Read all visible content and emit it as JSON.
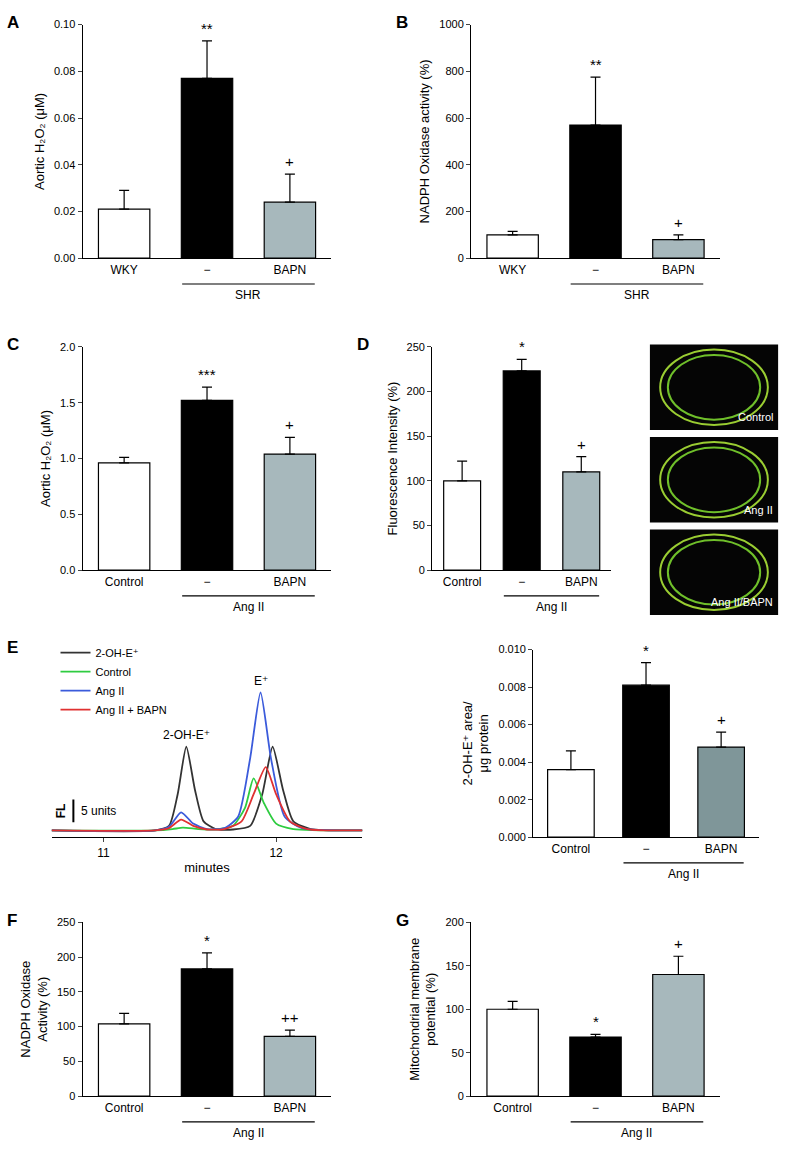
{
  "chart_data": [
    {
      "type": "bar",
      "panel": "A",
      "ylabel": "Aortic H₂O₂ (μM)",
      "categories": [
        "WKY",
        "−",
        "BAPN"
      ],
      "group_label": "SHR",
      "values": [
        0.021,
        0.077,
        0.024
      ],
      "errors": [
        0.008,
        0.016,
        0.012
      ],
      "colors": [
        "#ffffff",
        "#000000",
        "#a7b8bc"
      ],
      "marks": [
        null,
        "**",
        "+"
      ],
      "ylim": [
        0,
        0.1
      ],
      "yticks": [
        {
          "value": 0,
          "label": "0.00"
        },
        0.02,
        0.04,
        0.06,
        0.08,
        {
          "value": 0.1,
          "label": "0.10"
        }
      ],
      "grid": false
    },
    {
      "type": "bar",
      "panel": "B",
      "ylabel": "NADPH Oxidase activity (%)",
      "categories": [
        "WKY",
        "−",
        "BAPN"
      ],
      "group_label": "SHR",
      "values": [
        100,
        570,
        80
      ],
      "errors": [
        15,
        205,
        20
      ],
      "colors": [
        "#ffffff",
        "#000000",
        "#a7b8bc"
      ],
      "marks": [
        null,
        "**",
        "+"
      ],
      "ylim": [
        0,
        1000
      ],
      "yticks": [
        0,
        200,
        400,
        600,
        800,
        1000
      ],
      "grid": false
    },
    {
      "type": "bar",
      "panel": "C",
      "ylabel": "Aortic H₂O₂ (μM)",
      "categories": [
        "Control",
        "−",
        "BAPN"
      ],
      "group_label": "Ang II",
      "values": [
        0.96,
        1.52,
        1.04
      ],
      "errors": [
        0.05,
        0.12,
        0.15
      ],
      "colors": [
        "#ffffff",
        "#000000",
        "#a7b8bc"
      ],
      "marks": [
        null,
        "***",
        "+"
      ],
      "ylim": [
        0,
        2
      ],
      "yticks": [
        {
          "value": 0,
          "label": "0.0"
        },
        0.5,
        {
          "value": 1,
          "label": "1.0"
        },
        1.5,
        {
          "value": 2,
          "label": "2.0"
        }
      ],
      "grid": false
    },
    {
      "type": "bar",
      "panel": "D",
      "ylabel": "Fluorescence Intensity (%)",
      "categories": [
        "Control",
        "−",
        "BAPN"
      ],
      "group_label": "Ang II",
      "values": [
        100,
        223,
        110
      ],
      "errors": [
        22,
        13,
        17
      ],
      "colors": [
        "#ffffff",
        "#000000",
        "#a7b8bc"
      ],
      "marks": [
        null,
        "*",
        "+"
      ],
      "ylim": [
        0,
        250
      ],
      "yticks": [
        0,
        50,
        100,
        150,
        200,
        250
      ],
      "grid": false,
      "images": [
        "Control",
        "Ang II",
        "Ang II/BAPN"
      ]
    },
    {
      "type": "line",
      "panel": "E",
      "xlabel": "minutes",
      "xlim": [
        10.7,
        12.5
      ],
      "xticks": [
        11,
        12
      ],
      "ylim": [
        -1.5,
        40
      ],
      "tick_labels": "x",
      "grid": false,
      "legend": "upper left",
      "scale_bar": {
        "value": 5,
        "label": "5 units",
        "axis_label": "FL"
      },
      "peak_labels": [
        {
          "text": "2-OH-E⁺",
          "x": 11.48,
          "y": 18.5
        },
        {
          "text": "E⁺",
          "x": 11.91,
          "y": 30.5
        }
      ],
      "series": [
        {
          "name": "2-OH-E⁺",
          "color": "#333333",
          "x": [
            10.7,
            11.3,
            11.38,
            11.43,
            11.48,
            11.53,
            11.58,
            11.65,
            11.75,
            11.85,
            11.92,
            11.98,
            12.04,
            12.1,
            12.2,
            12.5
          ],
          "values": [
            0,
            0,
            1,
            8,
            18.5,
            9,
            2,
            0.3,
            0.2,
            1,
            8,
            18.5,
            9,
            2,
            0.3,
            0
          ]
        },
        {
          "name": "Control",
          "color": "#2ecc40",
          "x": [
            10.7,
            11.3,
            11.4,
            11.46,
            11.55,
            11.65,
            11.75,
            11.82,
            11.87,
            11.93,
            12.0,
            12.1,
            12.5
          ],
          "values": [
            0,
            0,
            0.3,
            0.6,
            0.3,
            0.2,
            1,
            5,
            11.5,
            6,
            1.5,
            0.3,
            0
          ]
        },
        {
          "name": "Ang II",
          "color": "#3b5bdb",
          "x": [
            10.7,
            11.3,
            11.38,
            11.45,
            11.52,
            11.6,
            11.7,
            11.78,
            11.85,
            11.91,
            11.97,
            12.05,
            12.15,
            12.5
          ],
          "values": [
            0,
            0,
            0.8,
            4,
            1.5,
            0.3,
            0.5,
            3,
            16,
            30.5,
            16,
            3,
            0.5,
            0
          ]
        },
        {
          "name": "Ang II + BAPN",
          "color": "#e03131",
          "x": [
            10.7,
            11.3,
            11.38,
            11.45,
            11.52,
            11.6,
            11.7,
            11.8,
            11.87,
            11.94,
            12.0,
            12.08,
            12.18,
            12.5
          ],
          "values": [
            0,
            0,
            0.5,
            2.4,
            1,
            0.2,
            0.3,
            2,
            8,
            14,
            8,
            2,
            0.3,
            0
          ]
        }
      ]
    },
    {
      "type": "bar",
      "ylabel": [
        "2-OH-E⁺ area/",
        "μg protein"
      ],
      "categories": [
        "Control",
        "−",
        "BAPN"
      ],
      "group_label": "Ang II",
      "values": [
        0.0036,
        0.0081,
        0.0048
      ],
      "errors": [
        0.001,
        0.0012,
        0.0008
      ],
      "colors": [
        "#ffffff",
        "#000000",
        "#7f9699"
      ],
      "marks": [
        null,
        "*",
        "+"
      ],
      "ylim": [
        0,
        0.01
      ],
      "yticks": [
        {
          "value": 0,
          "label": "0.000"
        },
        0.002,
        0.004,
        0.006,
        0.008,
        {
          "value": 0.01,
          "label": "0.010"
        }
      ],
      "grid": false
    },
    {
      "type": "bar",
      "panel": "F",
      "ylabel": [
        "NADPH Oxidase",
        "Activity (%)"
      ],
      "categories": [
        "Control",
        "−",
        "BAPN"
      ],
      "group_label": "Ang II",
      "values": [
        104,
        183,
        86
      ],
      "errors": [
        15,
        23,
        9
      ],
      "colors": [
        "#ffffff",
        "#000000",
        "#a7b8bc"
      ],
      "marks": [
        null,
        "*",
        "++"
      ],
      "ylim": [
        0,
        250
      ],
      "yticks": [
        0,
        50,
        100,
        150,
        200,
        250
      ],
      "grid": false
    },
    {
      "type": "bar",
      "panel": "G",
      "ylabel": [
        "Mitochondrial membrane",
        "potential (%)"
      ],
      "categories": [
        "Control",
        "−",
        "BAPN"
      ],
      "group_label": "Ang II",
      "values": [
        100,
        68,
        140
      ],
      "errors": [
        9,
        3,
        21
      ],
      "colors": [
        "#ffffff",
        "#000000",
        "#a7b8bc"
      ],
      "marks": [
        null,
        "*",
        "+"
      ],
      "ylim": [
        0,
        200
      ],
      "yticks": [
        0,
        50,
        100,
        150,
        200
      ],
      "grid": false
    }
  ]
}
